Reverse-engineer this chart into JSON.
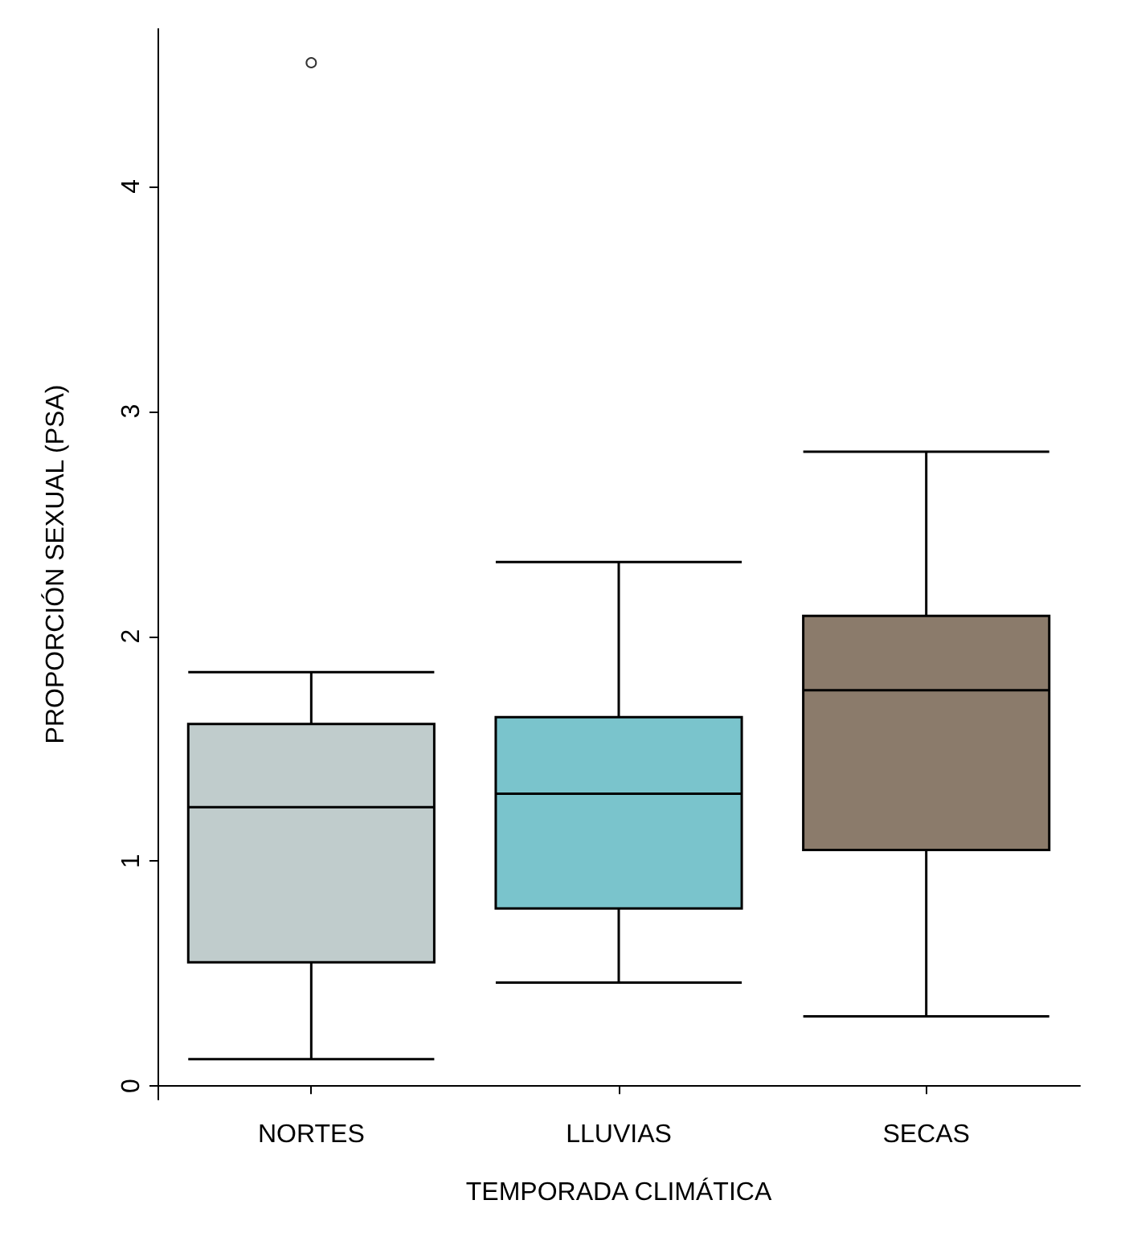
{
  "chart_data": {
    "type": "box",
    "xlabel": "TEMPORADA CLIMÁTICA",
    "ylabel": "PROPORCIÓN SEXUAL (PSA)",
    "categories": [
      "NORTES",
      "LLUVIAS",
      "SECAS"
    ],
    "boxes": [
      {
        "low": 0.12,
        "q1": 0.55,
        "median": 1.24,
        "q3": 1.61,
        "high": 1.84,
        "outliers": [
          4.55
        ]
      },
      {
        "low": 0.46,
        "q1": 0.79,
        "median": 1.3,
        "q3": 1.64,
        "high": 2.33
      },
      {
        "low": 0.31,
        "q1": 1.05,
        "median": 1.76,
        "q3": 2.09,
        "high": 2.82
      }
    ],
    "colors": [
      "#c0cccc",
      "#7ac4cc",
      "#8b7b6b"
    ],
    "ylim": [
      -0.06,
      4.7
    ],
    "yticks": [
      0,
      1,
      2,
      3,
      4
    ],
    "grid": false
  }
}
